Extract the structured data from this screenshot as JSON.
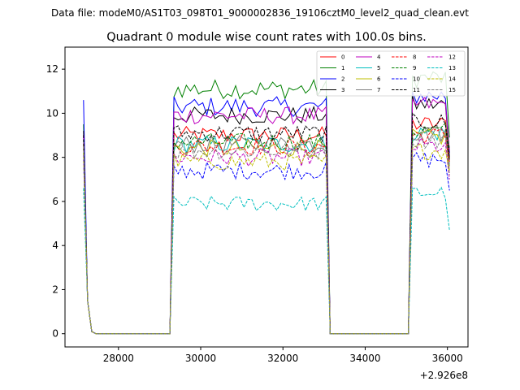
{
  "chart_data": {
    "type": "line",
    "suptitle": "Data file: modeM0/AS1T03_098T01_9000002836_19106cztM0_level2_quad_clean.evt",
    "title": "Quadrant 0 module wise count rates with 100.0s bins.",
    "xlabel": "",
    "ylabel": "",
    "x_offset_label": "+2.926e8",
    "xlim": [
      26700,
      36500
    ],
    "ylim": [
      -0.6,
      13.0
    ],
    "xticks": [
      28000,
      30000,
      32000,
      34000,
      36000
    ],
    "xtick_labels": [
      "28000",
      "30000",
      "32000",
      "34000",
      "36000"
    ],
    "yticks": [
      0,
      2,
      4,
      6,
      8,
      10,
      12
    ],
    "ytick_labels": [
      "0",
      "2",
      "4",
      "6",
      "8",
      "10",
      "12"
    ],
    "legend_position": "top-right",
    "segments": [
      {
        "start": 27150,
        "end": 27350
      },
      {
        "start": 29300,
        "end": 33050
      },
      {
        "start": 35150,
        "end": 36050
      }
    ],
    "series": [
      {
        "name": "0",
        "color": "#ff0000",
        "dash": "solid",
        "level": 9.0,
        "noise": 0.4,
        "first": 9.0,
        "last": 7.6
      },
      {
        "name": "1",
        "color": "#008000",
        "dash": "solid",
        "level": 11.1,
        "noise": 0.45,
        "first": 9.5,
        "last": 8.9
      },
      {
        "name": "2",
        "color": "#0000ff",
        "dash": "solid",
        "level": 10.3,
        "noise": 0.45,
        "first": 10.6,
        "last": 8.2
      },
      {
        "name": "3",
        "color": "#000000",
        "dash": "solid",
        "level": 9.9,
        "noise": 0.4,
        "first": 9.2,
        "last": 8.0
      },
      {
        "name": "4",
        "color": "#bf00bf",
        "dash": "solid",
        "level": 9.9,
        "noise": 0.4,
        "first": 9.0,
        "last": 8.3
      },
      {
        "name": "5",
        "color": "#00bfbf",
        "dash": "solid",
        "level": 8.6,
        "noise": 0.4,
        "first": 8.2,
        "last": 7.7
      },
      {
        "name": "6",
        "color": "#bfbf00",
        "dash": "solid",
        "level": 8.4,
        "noise": 0.4,
        "first": 8.5,
        "last": 7.4
      },
      {
        "name": "7",
        "color": "#808080",
        "dash": "solid",
        "level": 8.6,
        "noise": 0.4,
        "first": 8.4,
        "last": 7.6
      },
      {
        "name": "8",
        "color": "#ff0000",
        "dash": "dashed",
        "level": 8.5,
        "noise": 0.4,
        "first": 8.6,
        "last": 7.8
      },
      {
        "name": "9",
        "color": "#008000",
        "dash": "dashed",
        "level": 8.7,
        "noise": 0.4,
        "first": 8.8,
        "last": 8.4
      },
      {
        "name": "10",
        "color": "#0000ff",
        "dash": "dashed",
        "level": 7.4,
        "noise": 0.4,
        "first": 7.9,
        "last": 6.5
      },
      {
        "name": "11",
        "color": "#000000",
        "dash": "dashed",
        "level": 9.1,
        "noise": 0.4,
        "first": 9.0,
        "last": 7.9
      },
      {
        "name": "12",
        "color": "#bf00bf",
        "dash": "dashed",
        "level": 8.0,
        "noise": 0.4,
        "first": 8.1,
        "last": 7.0
      },
      {
        "name": "13",
        "color": "#00bfbf",
        "dash": "dashed",
        "level": 5.9,
        "noise": 0.35,
        "first": 6.6,
        "last": 4.7
      },
      {
        "name": "14",
        "color": "#bfbf00",
        "dash": "dashed",
        "level": 7.8,
        "noise": 0.4,
        "first": 8.2,
        "last": 7.3
      },
      {
        "name": "15",
        "color": "#808080",
        "dash": "dashed",
        "level": 8.3,
        "noise": 0.4,
        "first": 8.5,
        "last": 7.2
      }
    ]
  }
}
